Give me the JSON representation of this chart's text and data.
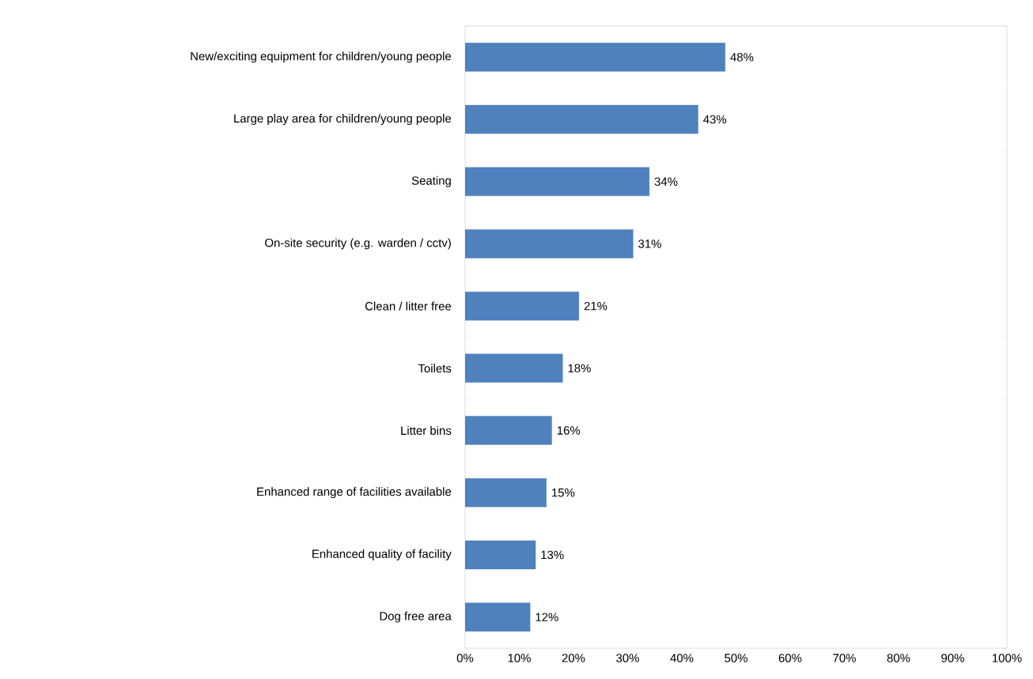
{
  "chart_data": {
    "type": "bar",
    "orientation": "horizontal",
    "categories": [
      "New/exciting equipment for children/young people",
      "Large play area for children/young people",
      "Seating",
      "On-site security (e.g. warden / cctv)",
      "Clean / litter free",
      "Toilets",
      "Litter bins",
      "Enhanced range of facilities available",
      "Enhanced quality of facility",
      "Dog free area"
    ],
    "values": [
      48,
      43,
      34,
      31,
      21,
      18,
      16,
      15,
      13,
      12
    ],
    "value_labels": [
      "48%",
      "43%",
      "34%",
      "31%",
      "21%",
      "18%",
      "16%",
      "15%",
      "13%",
      "12%"
    ],
    "color": "#4f81bd",
    "xlim": [
      0,
      100
    ],
    "xticks": [
      {
        "value": 0,
        "label": "0%"
      },
      {
        "value": 10,
        "label": "10%"
      },
      {
        "value": 20,
        "label": "20%"
      },
      {
        "value": 30,
        "label": "30%"
      },
      {
        "value": 40,
        "label": "40%"
      },
      {
        "value": 50,
        "label": "50%"
      },
      {
        "value": 60,
        "label": "60%"
      },
      {
        "value": 70,
        "label": "70%"
      },
      {
        "value": 80,
        "label": "80%"
      },
      {
        "value": 90,
        "label": "90%"
      },
      {
        "value": 100,
        "label": "100%"
      }
    ]
  }
}
